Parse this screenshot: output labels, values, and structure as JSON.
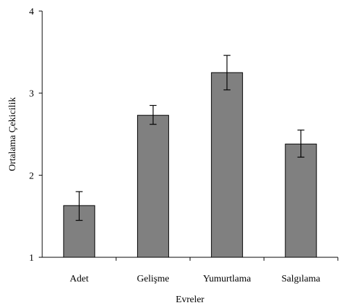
{
  "chart_data": {
    "type": "bar",
    "title": "",
    "xlabel": "Evreler",
    "ylabel": "Ortalama Çekicilik",
    "categories": [
      "Adet",
      "Gelişme",
      "Yumurtlama",
      "Salgılama"
    ],
    "values": [
      1.63,
      2.73,
      3.25,
      2.38
    ],
    "error_low": [
      1.45,
      2.62,
      3.04,
      2.22
    ],
    "error_high": [
      1.8,
      2.85,
      3.46,
      2.55
    ],
    "ylim": [
      1,
      4
    ],
    "yticks": [
      "1",
      "2",
      "3",
      "4"
    ],
    "grid": false,
    "legend": "none",
    "colors": {
      "bar": "#808080",
      "stroke": "#000000"
    }
  }
}
